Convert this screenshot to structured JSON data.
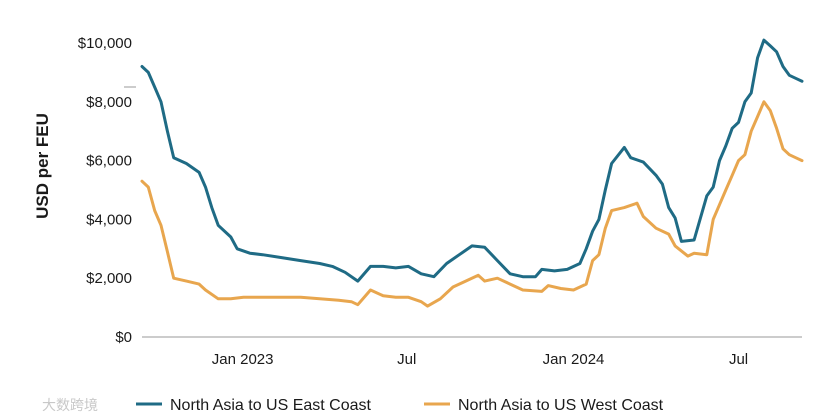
{
  "watermark": "大数跨境",
  "chart_data": {
    "type": "line",
    "title": "",
    "ylabel": "USD per FEU",
    "xlabel": "",
    "ylim": [
      0,
      10000
    ],
    "y_ticks": [
      {
        "value": 0,
        "label": "$0"
      },
      {
        "value": 2000,
        "label": "$2,000"
      },
      {
        "value": 4000,
        "label": "$4,000"
      },
      {
        "value": 6000,
        "label": "$6,000"
      },
      {
        "value": 8000,
        "label": "$8,000"
      },
      {
        "value": 10000,
        "label": "$10,000"
      }
    ],
    "x_ticks": [
      {
        "value": "2023-01-01",
        "label": "Jan 2023"
      },
      {
        "value": "2023-07-01",
        "label": "Jul"
      },
      {
        "value": "2024-01-01",
        "label": "Jan 2024"
      },
      {
        "value": "2024-07-01",
        "label": "Jul"
      }
    ],
    "xlim": [
      "2022-09-12",
      "2024-08-26"
    ],
    "grid": false,
    "legend_position": "bottom",
    "colors": {
      "east": "#1f6b85",
      "west": "#e8a64e",
      "axis": "#999999",
      "text": "#1a1a1a"
    },
    "series": [
      {
        "name": "North Asia to US East Coast",
        "color": "#1f6b85",
        "points": [
          [
            "2022-09-12",
            9200
          ],
          [
            "2022-09-19",
            9000
          ],
          [
            "2022-09-26",
            8500
          ],
          [
            "2022-10-03",
            8000
          ],
          [
            "2022-10-10",
            7000
          ],
          [
            "2022-10-17",
            6100
          ],
          [
            "2022-10-31",
            5900
          ],
          [
            "2022-11-14",
            5600
          ],
          [
            "2022-11-21",
            5100
          ],
          [
            "2022-11-28",
            4400
          ],
          [
            "2022-12-05",
            3800
          ],
          [
            "2022-12-19",
            3400
          ],
          [
            "2022-12-26",
            3000
          ],
          [
            "2023-01-09",
            2850
          ],
          [
            "2023-01-23",
            2800
          ],
          [
            "2023-02-13",
            2700
          ],
          [
            "2023-03-06",
            2600
          ],
          [
            "2023-03-27",
            2500
          ],
          [
            "2023-04-10",
            2400
          ],
          [
            "2023-04-24",
            2200
          ],
          [
            "2023-05-08",
            1900
          ],
          [
            "2023-05-22",
            2400
          ],
          [
            "2023-06-05",
            2400
          ],
          [
            "2023-06-19",
            2350
          ],
          [
            "2023-07-03",
            2400
          ],
          [
            "2023-07-17",
            2150
          ],
          [
            "2023-07-31",
            2050
          ],
          [
            "2023-08-14",
            2500
          ],
          [
            "2023-08-28",
            2800
          ],
          [
            "2023-09-11",
            3100
          ],
          [
            "2023-09-25",
            3050
          ],
          [
            "2023-10-09",
            2600
          ],
          [
            "2023-10-23",
            2150
          ],
          [
            "2023-11-06",
            2050
          ],
          [
            "2023-11-20",
            2050
          ],
          [
            "2023-11-27",
            2300
          ],
          [
            "2023-12-11",
            2250
          ],
          [
            "2023-12-25",
            2300
          ],
          [
            "2024-01-08",
            2500
          ],
          [
            "2024-01-15",
            3000
          ],
          [
            "2024-01-22",
            3600
          ],
          [
            "2024-01-29",
            4000
          ],
          [
            "2024-02-05",
            5000
          ],
          [
            "2024-02-12",
            5900
          ],
          [
            "2024-02-26",
            6450
          ],
          [
            "2024-03-04",
            6100
          ],
          [
            "2024-03-18",
            5950
          ],
          [
            "2024-04-01",
            5500
          ],
          [
            "2024-04-08",
            5200
          ],
          [
            "2024-04-15",
            4400
          ],
          [
            "2024-04-22",
            4050
          ],
          [
            "2024-04-29",
            3250
          ],
          [
            "2024-05-13",
            3300
          ],
          [
            "2024-05-27",
            4800
          ],
          [
            "2024-06-03",
            5100
          ],
          [
            "2024-06-10",
            6000
          ],
          [
            "2024-06-17",
            6500
          ],
          [
            "2024-06-24",
            7100
          ],
          [
            "2024-07-01",
            7300
          ],
          [
            "2024-07-08",
            8000
          ],
          [
            "2024-07-15",
            8300
          ],
          [
            "2024-07-22",
            9500
          ],
          [
            "2024-07-29",
            10100
          ],
          [
            "2024-08-05",
            9900
          ],
          [
            "2024-08-12",
            9700
          ],
          [
            "2024-08-19",
            9200
          ],
          [
            "2024-08-26",
            8900
          ],
          [
            "2024-09-02",
            8800
          ],
          [
            "2024-09-09",
            8700
          ]
        ]
      },
      {
        "name": "North Asia to US West Coast",
        "color": "#e8a64e",
        "points": [
          [
            "2022-09-12",
            5300
          ],
          [
            "2022-09-19",
            5100
          ],
          [
            "2022-09-26",
            4300
          ],
          [
            "2022-10-03",
            3800
          ],
          [
            "2022-10-10",
            2900
          ],
          [
            "2022-10-17",
            2000
          ],
          [
            "2022-10-31",
            1900
          ],
          [
            "2022-11-14",
            1800
          ],
          [
            "2022-11-21",
            1600
          ],
          [
            "2022-12-05",
            1300
          ],
          [
            "2022-12-19",
            1300
          ],
          [
            "2023-01-02",
            1350
          ],
          [
            "2023-01-23",
            1350
          ],
          [
            "2023-02-13",
            1350
          ],
          [
            "2023-03-06",
            1350
          ],
          [
            "2023-03-27",
            1300
          ],
          [
            "2023-04-17",
            1250
          ],
          [
            "2023-05-01",
            1200
          ],
          [
            "2023-05-08",
            1100
          ],
          [
            "2023-05-22",
            1600
          ],
          [
            "2023-06-05",
            1400
          ],
          [
            "2023-06-19",
            1350
          ],
          [
            "2023-07-03",
            1350
          ],
          [
            "2023-07-17",
            1200
          ],
          [
            "2023-07-24",
            1050
          ],
          [
            "2023-08-07",
            1300
          ],
          [
            "2023-08-21",
            1700
          ],
          [
            "2023-09-04",
            1900
          ],
          [
            "2023-09-18",
            2100
          ],
          [
            "2023-09-25",
            1900
          ],
          [
            "2023-10-09",
            2000
          ],
          [
            "2023-10-23",
            1800
          ],
          [
            "2023-11-06",
            1600
          ],
          [
            "2023-11-27",
            1550
          ],
          [
            "2023-12-04",
            1750
          ],
          [
            "2023-12-18",
            1650
          ],
          [
            "2024-01-01",
            1600
          ],
          [
            "2024-01-15",
            1800
          ],
          [
            "2024-01-22",
            2600
          ],
          [
            "2024-01-29",
            2800
          ],
          [
            "2024-02-05",
            3700
          ],
          [
            "2024-02-12",
            4300
          ],
          [
            "2024-02-26",
            4400
          ],
          [
            "2024-03-11",
            4550
          ],
          [
            "2024-03-18",
            4100
          ],
          [
            "2024-04-01",
            3700
          ],
          [
            "2024-04-15",
            3500
          ],
          [
            "2024-04-22",
            3100
          ],
          [
            "2024-05-06",
            2750
          ],
          [
            "2024-05-13",
            2850
          ],
          [
            "2024-05-27",
            2800
          ],
          [
            "2024-06-03",
            4000
          ],
          [
            "2024-06-10",
            4500
          ],
          [
            "2024-06-17",
            5000
          ],
          [
            "2024-06-24",
            5500
          ],
          [
            "2024-07-01",
            6000
          ],
          [
            "2024-07-08",
            6200
          ],
          [
            "2024-07-15",
            7000
          ],
          [
            "2024-07-22",
            7500
          ],
          [
            "2024-07-29",
            8000
          ],
          [
            "2024-08-05",
            7700
          ],
          [
            "2024-08-12",
            7100
          ],
          [
            "2024-08-19",
            6400
          ],
          [
            "2024-08-26",
            6200
          ],
          [
            "2024-09-02",
            6100
          ],
          [
            "2024-09-09",
            6000
          ]
        ]
      }
    ]
  }
}
